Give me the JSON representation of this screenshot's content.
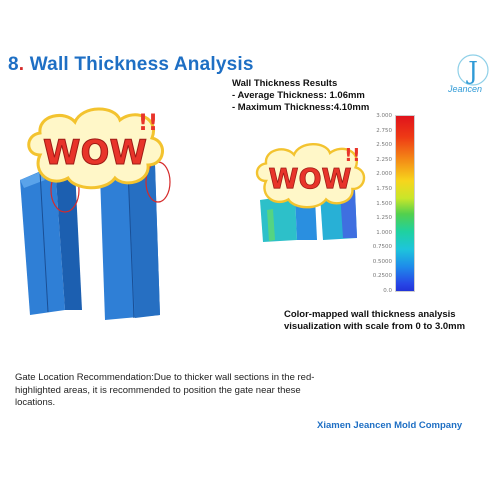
{
  "title": {
    "number": "8",
    "dot": ".",
    "text": "Wall Thickness Analysis"
  },
  "logo": {
    "name": "Jeancen",
    "letter": "J"
  },
  "results": {
    "heading": "Wall Thickness Results",
    "average": "- Average Thickness: 1.06mm",
    "maximum": "- Maximum Thickness:4.10mm"
  },
  "sticker": {
    "text": "WOW",
    "marks": "!!"
  },
  "scale": {
    "ticks": [
      "3.000",
      "2.750",
      "2.500",
      "2.250",
      "2.000",
      "1.750",
      "1.500",
      "1.250",
      "1.000",
      "0.7500",
      "0.5000",
      "0.2500",
      "0.0"
    ]
  },
  "caption": {
    "line1": "Color-mapped wall thickness analysis",
    "line2": "visualization with scale from 0 to 3.0mm"
  },
  "gate_text": "Gate Location Recommendation:Due to thicker wall sections in the red-highlighted areas, it is recommended to position the gate near these locations.",
  "company": "Xiamen Jeancen Mold Company",
  "colors": {
    "accent_blue": "#1e6fc4",
    "part_blue": "#2f7fd6",
    "highlight_red": "#d52a2a"
  }
}
